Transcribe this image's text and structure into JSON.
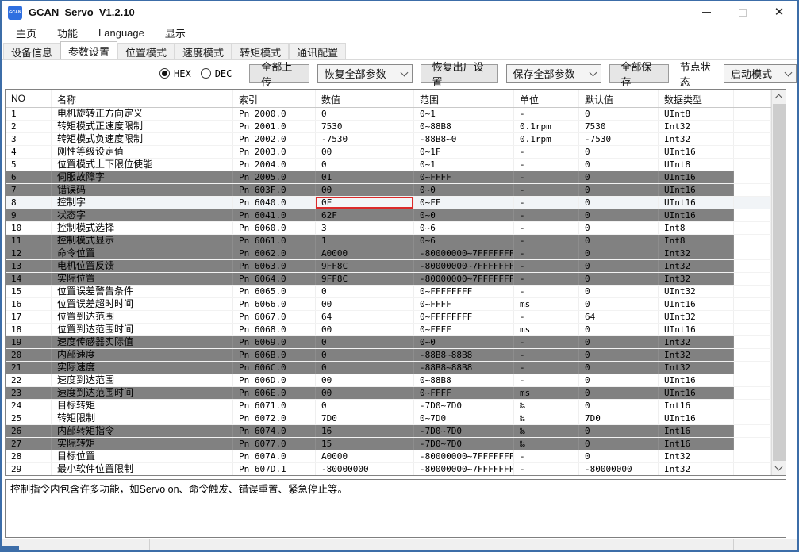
{
  "window": {
    "title": "GCAN_Servo_V1.2.10",
    "icon_label": "GCAN"
  },
  "menu": {
    "items": [
      "主页",
      "功能",
      "Language",
      "显示"
    ]
  },
  "tabs": {
    "items": [
      "设备信息",
      "参数设置",
      "位置模式",
      "速度模式",
      "转矩模式",
      "通讯配置"
    ],
    "selected": "参数设置"
  },
  "toolbar": {
    "radio_hex": "HEX",
    "radio_dec": "DEC",
    "radio_selected": "HEX",
    "upload_all_label": "全部上传",
    "restore_all_params_label": "恢复全部参数",
    "factory_reset_label": "恢复出厂设置",
    "save_all_params_label": "保存全部参数",
    "save_all_label": "全部保存",
    "node_status_label": "节点状态",
    "start_mode_value": "启动模式"
  },
  "table": {
    "columns": [
      "NO",
      "名称",
      "索引",
      "数值",
      "范围",
      "单位",
      "默认值",
      "数据类型"
    ],
    "rows": [
      {
        "no": "1",
        "name": "电机旋转正方向定义",
        "index": "Pn 2000.0",
        "value": "0",
        "range": "0~1",
        "unit": "-",
        "def": "0",
        "type": "UInt8",
        "style": "normal"
      },
      {
        "no": "2",
        "name": "转矩模式正速度限制",
        "index": "Pn 2001.0",
        "value": "7530",
        "range": "0~88B8",
        "unit": "0.1rpm",
        "def": "7530",
        "type": "Int32",
        "style": "normal"
      },
      {
        "no": "3",
        "name": "转矩模式负速度限制",
        "index": "Pn 2002.0",
        "value": "-7530",
        "range": "-88B8~0",
        "unit": "0.1rpm",
        "def": "-7530",
        "type": "Int32",
        "style": "normal"
      },
      {
        "no": "4",
        "name": "刚性等级设定值",
        "index": "Pn 2003.0",
        "value": "00",
        "range": "0~1F",
        "unit": "-",
        "def": "0",
        "type": "UInt16",
        "style": "normal"
      },
      {
        "no": "5",
        "name": "位置模式上下限位使能",
        "index": "Pn 2004.0",
        "value": "0",
        "range": "0~1",
        "unit": "-",
        "def": "0",
        "type": "UInt8",
        "style": "normal"
      },
      {
        "no": "6",
        "name": "伺服故障字",
        "index": "Pn 2005.0",
        "value": "01",
        "range": "0~FFFF",
        "unit": "-",
        "def": "0",
        "type": "UInt16",
        "style": "gray"
      },
      {
        "no": "7",
        "name": "错误码",
        "index": "Pn 603F.0",
        "value": "00",
        "range": "0~0",
        "unit": "-",
        "def": "0",
        "type": "UInt16",
        "style": "gray"
      },
      {
        "no": "8",
        "name": "控制字",
        "index": "Pn 6040.0",
        "value": "0F",
        "range": "0~FF",
        "unit": "-",
        "def": "0",
        "type": "UInt16",
        "style": "selected",
        "value_outlined": true
      },
      {
        "no": "9",
        "name": "状态字",
        "index": "Pn 6041.0",
        "value": "62F",
        "range": "0~0",
        "unit": "-",
        "def": "0",
        "type": "UInt16",
        "style": "gray"
      },
      {
        "no": "10",
        "name": "控制模式选择",
        "index": "Pn 6060.0",
        "value": "3",
        "range": "0~6",
        "unit": "-",
        "def": "0",
        "type": "Int8",
        "style": "normal"
      },
      {
        "no": "11",
        "name": "控制模式显示",
        "index": "Pn 6061.0",
        "value": "1",
        "range": "0~6",
        "unit": "-",
        "def": "0",
        "type": "Int8",
        "style": "gray"
      },
      {
        "no": "12",
        "name": "命令位置",
        "index": "Pn 6062.0",
        "value": "A0000",
        "range": "-80000000~7FFFFFFF",
        "unit": "-",
        "def": "0",
        "type": "Int32",
        "style": "gray"
      },
      {
        "no": "13",
        "name": "电机位置反馈",
        "index": "Pn 6063.0",
        "value": "9FF8C",
        "range": "-80000000~7FFFFFFF",
        "unit": "-",
        "def": "0",
        "type": "Int32",
        "style": "gray"
      },
      {
        "no": "14",
        "name": "实际位置",
        "index": "Pn 6064.0",
        "value": "9FF8C",
        "range": "-80000000~7FFFFFFF",
        "unit": "-",
        "def": "0",
        "type": "Int32",
        "style": "gray"
      },
      {
        "no": "15",
        "name": "位置误差警告条件",
        "index": "Pn 6065.0",
        "value": "0",
        "range": "0~FFFFFFFF",
        "unit": "-",
        "def": "0",
        "type": "UInt32",
        "style": "normal"
      },
      {
        "no": "16",
        "name": "位置误差超时时间",
        "index": "Pn 6066.0",
        "value": "00",
        "range": "0~FFFF",
        "unit": "ms",
        "def": "0",
        "type": "UInt16",
        "style": "normal"
      },
      {
        "no": "17",
        "name": "位置到达范围",
        "index": "Pn 6067.0",
        "value": "64",
        "range": "0~FFFFFFFF",
        "unit": "-",
        "def": "64",
        "type": "UInt32",
        "style": "normal"
      },
      {
        "no": "18",
        "name": "位置到达范围时间",
        "index": "Pn 6068.0",
        "value": "00",
        "range": "0~FFFF",
        "unit": "ms",
        "def": "0",
        "type": "UInt16",
        "style": "normal"
      },
      {
        "no": "19",
        "name": "速度传感器实际值",
        "index": "Pn 6069.0",
        "value": "0",
        "range": "0~0",
        "unit": "-",
        "def": "0",
        "type": "Int32",
        "style": "gray"
      },
      {
        "no": "20",
        "name": "内部速度",
        "index": "Pn 606B.0",
        "value": "0",
        "range": "-88B8~88B8",
        "unit": "-",
        "def": "0",
        "type": "Int32",
        "style": "gray"
      },
      {
        "no": "21",
        "name": "实际速度",
        "index": "Pn 606C.0",
        "value": "0",
        "range": "-88B8~88B8",
        "unit": "-",
        "def": "0",
        "type": "Int32",
        "style": "gray"
      },
      {
        "no": "22",
        "name": "速度到达范围",
        "index": "Pn 606D.0",
        "value": "00",
        "range": "0~88B8",
        "unit": "-",
        "def": "0",
        "type": "UInt16",
        "style": "normal"
      },
      {
        "no": "23",
        "name": "速度到达范围时间",
        "index": "Pn 606E.0",
        "value": "00",
        "range": "0~FFFF",
        "unit": "ms",
        "def": "0",
        "type": "UInt16",
        "style": "gray"
      },
      {
        "no": "24",
        "name": "目标转矩",
        "index": "Pn 6071.0",
        "value": "0",
        "range": "-7D0~7D0",
        "unit": "‰",
        "def": "0",
        "type": "Int16",
        "style": "normal"
      },
      {
        "no": "25",
        "name": "转矩限制",
        "index": "Pn 6072.0",
        "value": "7D0",
        "range": "0~7D0",
        "unit": "‰",
        "def": "7D0",
        "type": "UInt16",
        "style": "normal"
      },
      {
        "no": "26",
        "name": "内部转矩指令",
        "index": "Pn 6074.0",
        "value": "16",
        "range": "-7D0~7D0",
        "unit": "‰",
        "def": "0",
        "type": "Int16",
        "style": "gray"
      },
      {
        "no": "27",
        "name": "实际转矩",
        "index": "Pn 6077.0",
        "value": "15",
        "range": "-7D0~7D0",
        "unit": "‰",
        "def": "0",
        "type": "Int16",
        "style": "gray"
      },
      {
        "no": "28",
        "name": "目标位置",
        "index": "Pn 607A.0",
        "value": "A0000",
        "range": "-80000000~7FFFFFFF",
        "unit": "-",
        "def": "0",
        "type": "Int32",
        "style": "normal"
      },
      {
        "no": "29",
        "name": "最小软件位置限制",
        "index": "Pn 607D.1",
        "value": "-80000000",
        "range": "-80000000~7FFFFFFF",
        "unit": "-",
        "def": "-80000000",
        "type": "Int32",
        "style": "normal"
      }
    ]
  },
  "description": "控制指令内包含许多功能，如Servo on、命令触发、错误重置、紧急停止等。",
  "colors": {
    "window_border": "#3c6da8",
    "row_highlight_gray": "#818181",
    "selected_value_outline": "#dc2a2a",
    "icon_blue": "#2f6fe0"
  }
}
